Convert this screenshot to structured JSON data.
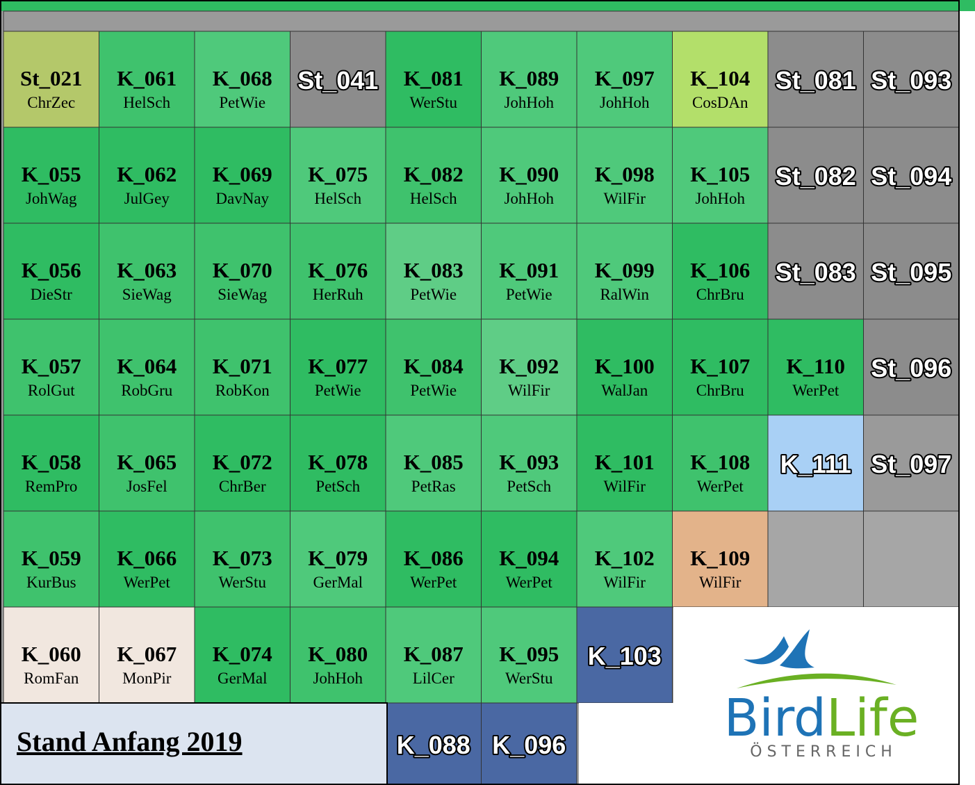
{
  "grid": {
    "rows": [
      [
        {
          "code": "St_021",
          "name": "ChrZec",
          "color": "#b4c86a"
        },
        {
          "code": "K_061",
          "name": "HelSch",
          "color": "#3fc26d"
        },
        {
          "code": "K_068",
          "name": "PetWie",
          "color": "#4fc97b"
        },
        {
          "code": "St_041",
          "color": "#8c8c8c"
        },
        {
          "code": "K_081",
          "name": "WerStu",
          "color": "#2fbc62"
        },
        {
          "code": "K_089",
          "name": "JohHoh",
          "color": "#4fc97b"
        },
        {
          "code": "K_097",
          "name": "JohHoh",
          "color": "#4fc97b"
        },
        {
          "code": "K_104",
          "name": "CosDAn",
          "color": "#b3df6a"
        },
        {
          "code": "St_081",
          "color": "#8c8c8c"
        },
        {
          "code": "St_093",
          "color": "#8c8c8c"
        }
      ],
      [
        {
          "code": "K_055",
          "name": "JohWag",
          "color": "#2fbc62"
        },
        {
          "code": "K_062",
          "name": "JulGey",
          "color": "#2fbc62"
        },
        {
          "code": "K_069",
          "name": "DavNay",
          "color": "#2fbc62"
        },
        {
          "code": "K_075",
          "name": "HelSch",
          "color": "#4fc97b"
        },
        {
          "code": "K_082",
          "name": "HelSch",
          "color": "#3fc26d"
        },
        {
          "code": "K_090",
          "name": "JohHoh",
          "color": "#4fc97b"
        },
        {
          "code": "K_098",
          "name": "WilFir",
          "color": "#4fc97b"
        },
        {
          "code": "K_105",
          "name": "JohHoh",
          "color": "#4fc97b"
        },
        {
          "code": "St_082",
          "color": "#8c8c8c"
        },
        {
          "code": "St_094",
          "color": "#8c8c8c"
        }
      ],
      [
        {
          "code": "K_056",
          "name": "DieStr",
          "color": "#2fbc62"
        },
        {
          "code": "K_063",
          "name": "SieWag",
          "color": "#3fc26d"
        },
        {
          "code": "K_070",
          "name": "SieWag",
          "color": "#3fc26d"
        },
        {
          "code": "K_076",
          "name": "HerRuh",
          "color": "#3fc26d"
        },
        {
          "code": "K_083",
          "name": "PetWie",
          "color": "#5fcd86"
        },
        {
          "code": "K_091",
          "name": "PetWie",
          "color": "#4fc97b"
        },
        {
          "code": "K_099",
          "name": "RalWin",
          "color": "#4fc97b"
        },
        {
          "code": "K_106",
          "name": "ChrBru",
          "color": "#2fbc62"
        },
        {
          "code": "St_083",
          "color": "#8c8c8c"
        },
        {
          "code": "St_095",
          "color": "#8c8c8c"
        }
      ],
      [
        {
          "code": "K_057",
          "name": "RolGut",
          "color": "#3fc26d"
        },
        {
          "code": "K_064",
          "name": "RobGru",
          "color": "#3fc26d"
        },
        {
          "code": "K_071",
          "name": "RobKon",
          "color": "#3fc26d"
        },
        {
          "code": "K_077",
          "name": "PetWie",
          "color": "#2fbc62"
        },
        {
          "code": "K_084",
          "name": "PetWie",
          "color": "#3fc26d"
        },
        {
          "code": "K_092",
          "name": "WilFir",
          "color": "#5fcd86"
        },
        {
          "code": "K_100",
          "name": "WalJan",
          "color": "#2fbc62"
        },
        {
          "code": "K_107",
          "name": "ChrBru",
          "color": "#2fbc62"
        },
        {
          "code": "K_110",
          "name": "WerPet",
          "color": "#2fbc62"
        },
        {
          "code": "St_096",
          "color": "#8c8c8c"
        }
      ],
      [
        {
          "code": "K_058",
          "name": "RemPro",
          "color": "#2fbc62"
        },
        {
          "code": "K_065",
          "name": "JosFel",
          "color": "#3fc26d"
        },
        {
          "code": "K_072",
          "name": "ChrBer",
          "color": "#2fbc62"
        },
        {
          "code": "K_078",
          "name": "PetSch",
          "color": "#2fbc62"
        },
        {
          "code": "K_085",
          "name": "PetRas",
          "color": "#4fc97b"
        },
        {
          "code": "K_093",
          "name": "PetSch",
          "color": "#4fc97b"
        },
        {
          "code": "K_101",
          "name": "WilFir",
          "color": "#2fbc62"
        },
        {
          "code": "K_108",
          "name": "WerPet",
          "color": "#3fc26d"
        },
        {
          "code": "K_111",
          "color": "#a9d0f5"
        },
        {
          "code": "St_097",
          "color": "#9a9a9a"
        }
      ],
      [
        {
          "code": "K_059",
          "name": "KurBus",
          "color": "#3fc26d"
        },
        {
          "code": "K_066",
          "name": "WerPet",
          "color": "#2fbc62"
        },
        {
          "code": "K_073",
          "name": "WerStu",
          "color": "#3fc26d"
        },
        {
          "code": "K_079",
          "name": "GerMal",
          "color": "#4fc97b"
        },
        {
          "code": "K_086",
          "name": "WerPet",
          "color": "#2fbc62"
        },
        {
          "code": "K_094",
          "name": "WerPet",
          "color": "#2fbc62"
        },
        {
          "code": "K_102",
          "name": "WilFir",
          "color": "#4fc97b"
        },
        {
          "code": "K_109",
          "name": "WilFir",
          "color": "#e3b38a"
        },
        {
          "color": "#a6a6a6"
        },
        {
          "color": "#a6a6a6"
        }
      ],
      [
        {
          "code": "K_060",
          "name": "RomFan",
          "color": "#f1e7df"
        },
        {
          "code": "K_067",
          "name": "MonPir",
          "color": "#f1e7df"
        },
        {
          "code": "K_074",
          "name": "GerMal",
          "color": "#2fbc62"
        },
        {
          "code": "K_080",
          "name": "JohHoh",
          "color": "#3fc26d"
        },
        {
          "code": "K_087",
          "name": "LilCer",
          "color": "#4fc97b"
        },
        {
          "code": "K_095",
          "name": "WerStu",
          "color": "#4fc97b"
        },
        {
          "code": "K_103",
          "color": "#4a68a3"
        },
        null,
        null,
        null
      ],
      [
        null,
        null,
        null,
        null,
        {
          "code": "K_088",
          "color": "#4a68a3"
        },
        {
          "code": "K_096",
          "color": "#4a68a3"
        },
        null,
        null,
        null,
        null
      ]
    ]
  },
  "stand": "Stand Anfang 2019",
  "logo": {
    "name": [
      "Bird",
      "Life"
    ],
    "country": "ÖSTERREICH"
  }
}
